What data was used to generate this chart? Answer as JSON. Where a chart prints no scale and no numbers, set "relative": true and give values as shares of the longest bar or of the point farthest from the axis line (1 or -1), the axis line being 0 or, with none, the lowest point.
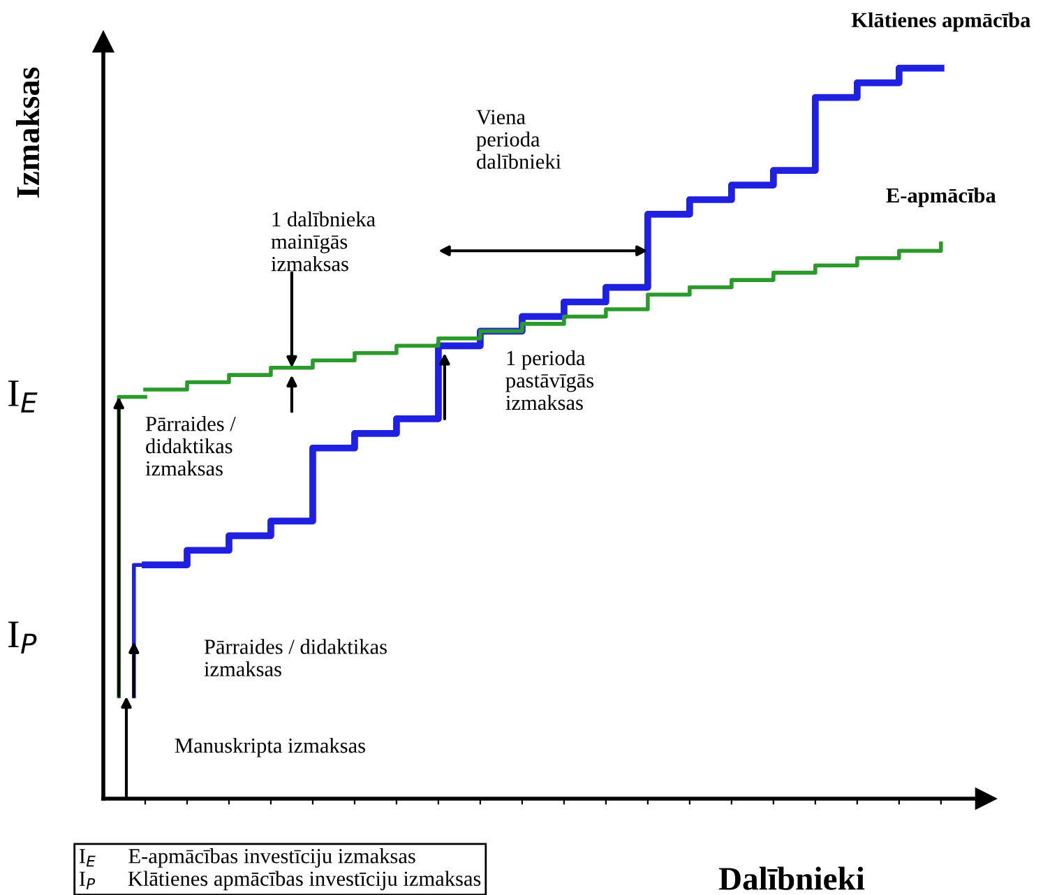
{
  "chart_data": {
    "type": "step",
    "relative": true,
    "xlabel": "Dalībnieki",
    "ylabel": "Izmaksas",
    "categories": [
      null,
      null,
      null,
      null,
      null,
      null,
      null,
      null,
      null,
      null,
      null,
      null,
      null,
      null,
      null,
      null,
      null,
      null,
      null,
      null
    ],
    "grid": false,
    "series": [
      {
        "name": "Klātienes apmācība",
        "color": "#2020e0",
        "values": [
          0.32,
          0.34,
          0.36,
          0.38,
          0.48,
          0.5,
          0.52,
          0.62,
          0.64,
          0.66,
          0.68,
          0.7,
          0.8,
          0.82,
          0.84,
          0.86,
          0.96,
          0.98,
          1.0,
          1.0
        ]
      },
      {
        "name": "E-apmācība",
        "color": "#2a9a2a",
        "values": [
          0.56,
          0.57,
          0.58,
          0.59,
          0.6,
          0.61,
          0.62,
          0.63,
          0.64,
          0.65,
          0.66,
          0.67,
          0.69,
          0.7,
          0.71,
          0.72,
          0.73,
          0.74,
          0.75,
          0.76
        ]
      }
    ],
    "annotations": [
      "I$_{E}$",
      "I$_{P}$",
      "Viena\nperioda\ndalībnieki",
      "1 dalībnieka\nmainīgās\nizmaksas",
      "1 perioda\npastāvīgās\nizmaksas",
      "Pārraides /\ndidaktikas\nizmaksas",
      "Pārraides / didaktikas\nizmaksas",
      "Manuskripta izmaksas",
      "I$_{E}$      E-apmācības investīciju izmaksas\nI$_{P}$      Klātienes apmācības investīciju izmaksas"
    ]
  }
}
